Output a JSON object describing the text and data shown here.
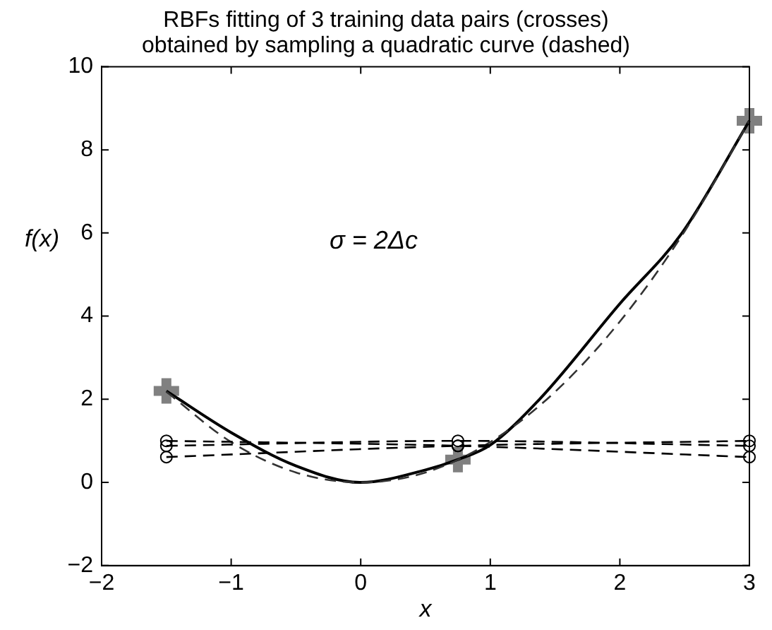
{
  "chart_data": {
    "type": "line",
    "title": [
      "RBFs fitting of 3 training data pairs (crosses)",
      "obtained by sampling a quadratic curve (dashed)"
    ],
    "xlabel": "x",
    "ylabel": "f(x)",
    "annotations": [
      "σ = 2Δc"
    ],
    "xlim": [
      -2,
      3
    ],
    "ylim": [
      -2,
      10
    ],
    "xticks": [
      {
        "value": -2,
        "label": "−2"
      },
      {
        "value": -1,
        "label": "−1"
      },
      0,
      1,
      2,
      3
    ],
    "yticks": [
      {
        "value": -2,
        "label": "−2"
      },
      0,
      2,
      4,
      6,
      8,
      10
    ],
    "grid": false,
    "legend": false,
    "series": [
      {
        "type": "line",
        "color": "#000000",
        "line_style": "dashed",
        "marker": "circle",
        "x": [
          -1.5,
          0.75,
          3
        ],
        "values": [
          1,
          0.88,
          0.61
        ]
      },
      {
        "type": "line",
        "color": "#000000",
        "line_style": "dashed",
        "marker": "circle",
        "x": [
          -1.5,
          0.75,
          3
        ],
        "values": [
          0.88,
          1,
          0.88
        ]
      },
      {
        "type": "line",
        "color": "#000000",
        "line_style": "dashed",
        "marker": "circle",
        "x": [
          -1.5,
          0.75,
          3
        ],
        "values": [
          0.61,
          0.88,
          1
        ]
      },
      {
        "type": "line",
        "color": "#333333",
        "line_style": "dashed",
        "marker": "none",
        "x": [
          -1.5,
          -1,
          -0.5,
          0,
          0.5,
          1,
          1.5,
          2,
          2.5,
          3
        ],
        "values": [
          2.18,
          0.97,
          0.24,
          0,
          0.24,
          0.97,
          2.18,
          3.87,
          6.04,
          8.7
        ]
      },
      {
        "type": "line",
        "color": "#000000",
        "line_style": "solid",
        "marker": "none",
        "x": [
          -1.5,
          -1,
          -0.5,
          0,
          0.5,
          0.75,
          1,
          1.38,
          2,
          2.48,
          3
        ],
        "values": [
          2.2,
          1.2,
          0.4,
          0,
          0.3,
          0.55,
          0.9,
          2,
          4.3,
          6,
          8.7
        ]
      },
      {
        "type": "scatter",
        "color": "#808080",
        "marker": "cross",
        "x": [
          -1.5,
          0.75,
          3
        ],
        "values": [
          2.2,
          0.55,
          8.7
        ]
      }
    ]
  }
}
